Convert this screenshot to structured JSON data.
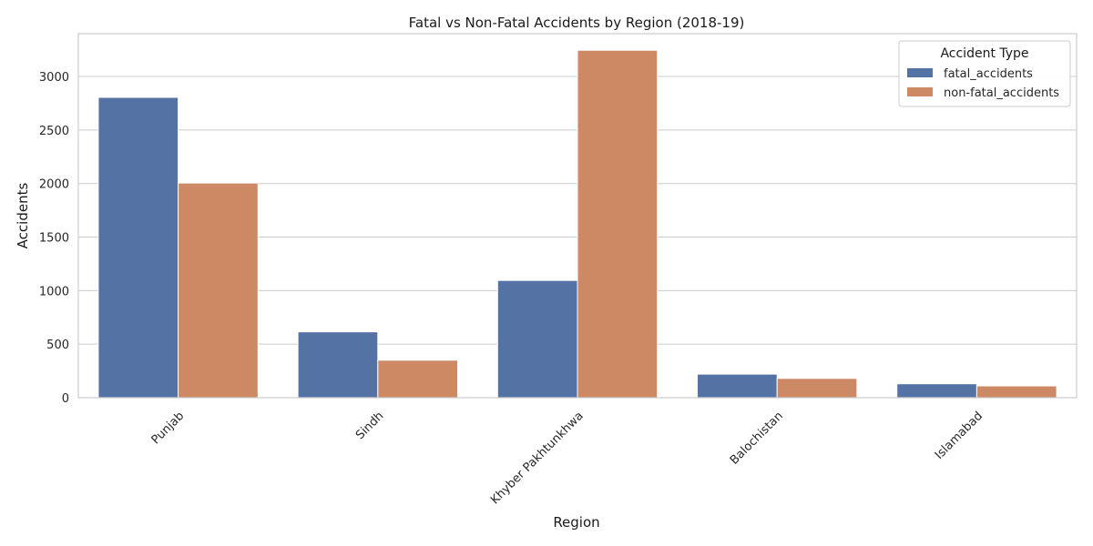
{
  "chart_data": {
    "type": "bar",
    "title": "Fatal vs Non-Fatal Accidents by Region (2018-19)",
    "xlabel": "Region",
    "ylabel": "Accidents",
    "categories": [
      "Punjab",
      "Sindh",
      "Khyber Pakhtunkhwa",
      "Balochistan",
      "Islamabad"
    ],
    "series": [
      {
        "name": "fatal_accidents",
        "color": "#5572a4",
        "values": [
          2805,
          615,
          1095,
          220,
          130
        ]
      },
      {
        "name": "non-fatal_accidents",
        "color": "#cc8963",
        "values": [
          2005,
          350,
          3245,
          180,
          110
        ]
      }
    ],
    "ylim": [
      0,
      3400
    ],
    "yticks": [
      0,
      500,
      1000,
      1500,
      2000,
      2500,
      3000
    ],
    "legend": {
      "title": "Accident Type",
      "placement": "top-right"
    },
    "grid": true
  }
}
